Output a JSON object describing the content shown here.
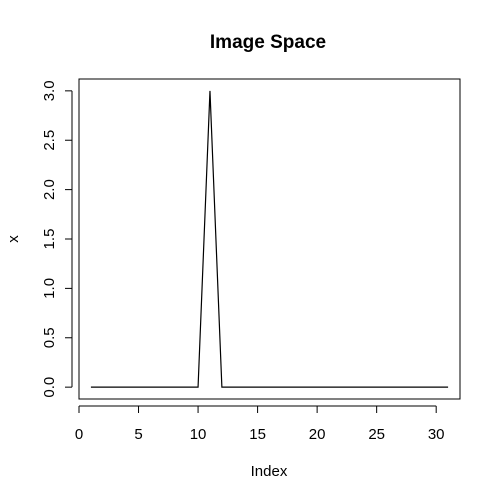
{
  "chart_data": {
    "type": "line",
    "title": "Image Space",
    "xlabel": "Index",
    "ylabel": "x",
    "xlim": [
      0,
      32
    ],
    "ylim": [
      -0.12,
      3.12
    ],
    "xticks": [
      0,
      5,
      10,
      15,
      20,
      25,
      30
    ],
    "xtick_labels": [
      "0",
      "5",
      "10",
      "15",
      "20",
      "25",
      "30"
    ],
    "yticks": [
      0,
      0.5,
      1,
      1.5,
      2,
      2.5,
      3
    ],
    "ytick_labels": [
      "0.0",
      "0.5",
      "1.0",
      "1.5",
      "2.0",
      "2.5",
      "3.0"
    ],
    "grid": false,
    "series": [
      {
        "x": [
          1,
          2,
          3,
          4,
          5,
          6,
          7,
          8,
          9,
          10,
          11,
          12,
          13,
          14,
          15,
          16,
          17,
          18,
          19,
          20,
          21,
          22,
          23,
          24,
          25,
          26,
          27,
          28,
          29,
          30,
          31
        ],
        "values": [
          0,
          0,
          0,
          0,
          0,
          0,
          0,
          0,
          0,
          0,
          3,
          0,
          0,
          0,
          0,
          0,
          0,
          0,
          0,
          0,
          0,
          0,
          0,
          0,
          0,
          0,
          0,
          0,
          0,
          0,
          0
        ]
      }
    ],
    "line_color": "#000000"
  }
}
